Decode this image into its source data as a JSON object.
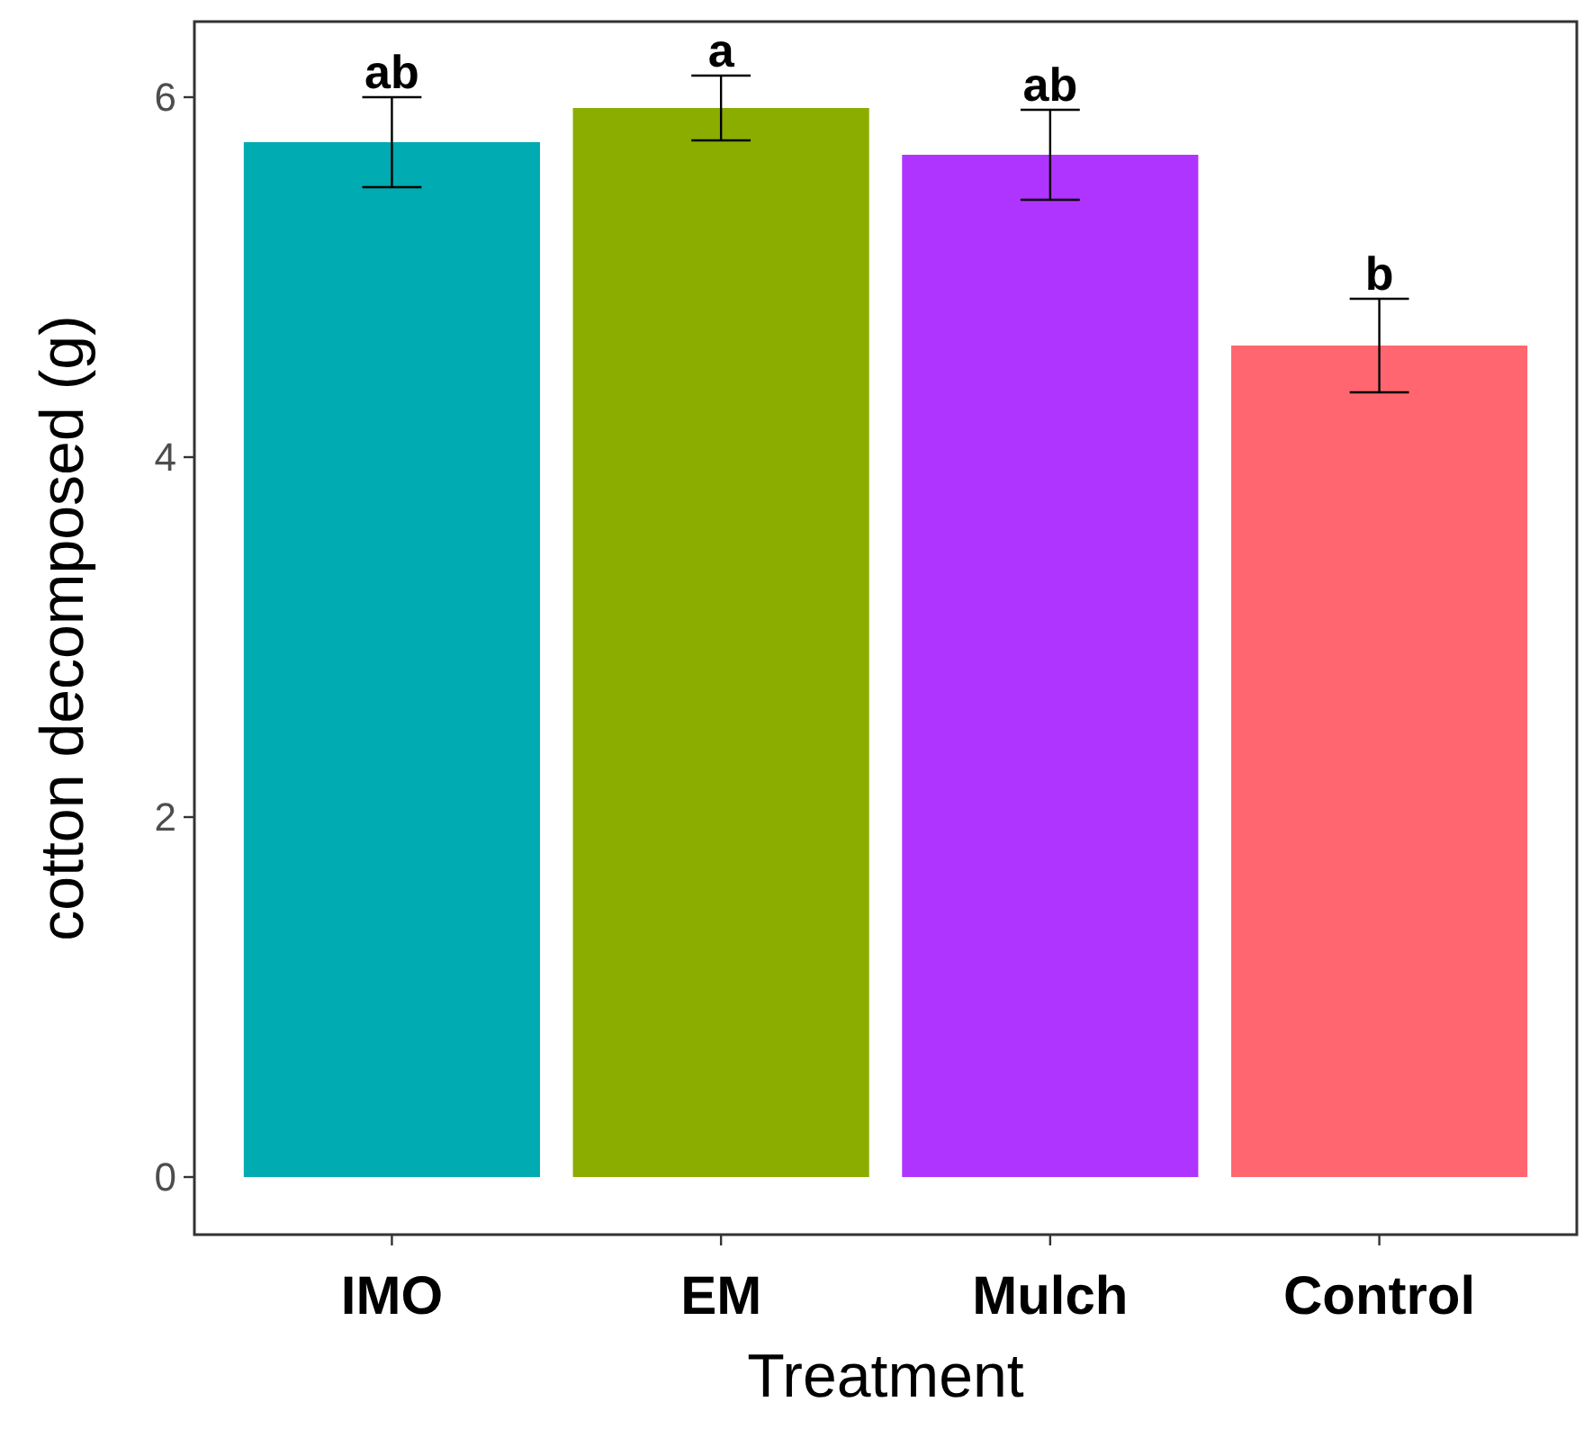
{
  "chart_data": {
    "type": "bar",
    "xlabel": "Treatment",
    "ylabel": "cotton decomposed (g)",
    "categories": [
      "IMO",
      "EM",
      "Mulch",
      "Control"
    ],
    "values": [
      5.75,
      5.94,
      5.68,
      4.62
    ],
    "colors": [
      "#00abb1",
      "#8bad00",
      "#b034ff",
      "#ff6670"
    ],
    "errors": [
      0.25,
      0.18,
      0.25,
      0.26
    ],
    "ylim": [
      -0.32,
      6.42
    ],
    "yticks": [
      0,
      2,
      4,
      6
    ],
    "grid": false,
    "annotations": [
      {
        "text": "ab",
        "x": "IMO",
        "y": 6.0
      },
      {
        "text": "a",
        "x": "EM",
        "y": 6.12
      },
      {
        "text": "ab",
        "x": "Mulch",
        "y": 5.93
      },
      {
        "text": "b",
        "x": "Control",
        "y": 4.88
      }
    ]
  }
}
